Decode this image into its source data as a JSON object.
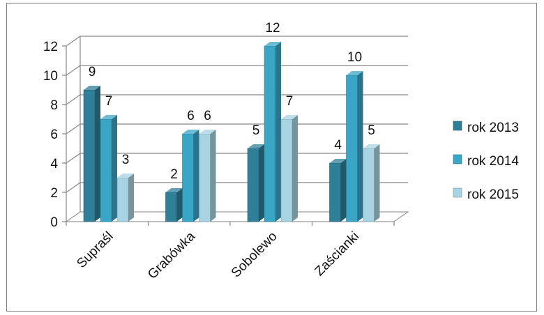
{
  "chart_data": {
    "type": "bar",
    "title": "",
    "xlabel": "",
    "ylabel": "",
    "categories": [
      "Supraśl",
      "Grabówka",
      "Sobolewo",
      "Zaścianki"
    ],
    "series": [
      {
        "name": "rok 2013",
        "values": [
          9,
          2,
          5,
          4
        ],
        "color": "#2f7f98"
      },
      {
        "name": "rok 2014",
        "values": [
          7,
          6,
          12,
          10
        ],
        "color": "#3aa6c6"
      },
      {
        "name": "rok 2015",
        "values": [
          3,
          6,
          7,
          5
        ],
        "color": "#a7d3e2"
      }
    ],
    "ylim": [
      0,
      12
    ],
    "yticks": [
      "0",
      "2",
      "4",
      "6",
      "8",
      "10",
      "12"
    ],
    "grid": true,
    "legend_position": "right",
    "style": "3d-clustered-column"
  }
}
